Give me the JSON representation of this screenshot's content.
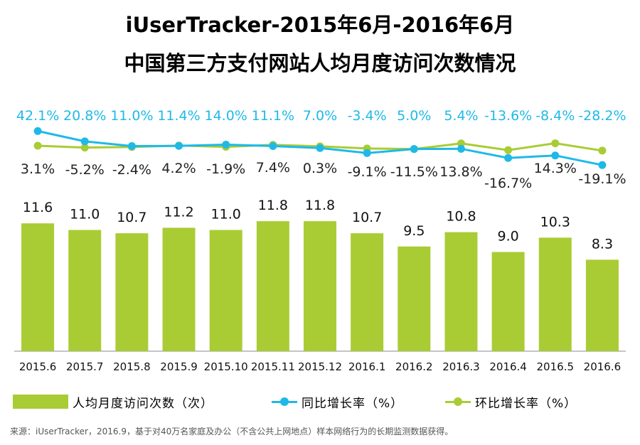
{
  "title_line1": "iUserTracker-2015年6月-2016年6月",
  "title_line2": "中国第三方支付网站人均月度访问次数情况",
  "chart_data": {
    "type": "bar",
    "categories": [
      "2015.6",
      "2015.7",
      "2015.8",
      "2015.9",
      "2015.10",
      "2015.11",
      "2015.12",
      "2016.1",
      "2016.2",
      "2016.3",
      "2016.4",
      "2016.5",
      "2016.6"
    ],
    "series": [
      {
        "name": "人均月度访问次数（次）",
        "kind": "bar",
        "color": "#a9cc34",
        "values": [
          11.6,
          11.0,
          10.7,
          11.2,
          11.0,
          11.8,
          11.8,
          10.7,
          9.5,
          10.8,
          9.0,
          10.3,
          8.3
        ],
        "labels": [
          "11.6",
          "11.0",
          "10.7",
          "11.2",
          "11.0",
          "11.8",
          "11.8",
          "10.7",
          "9.5",
          "10.8",
          "9.0",
          "10.3",
          "8.3"
        ]
      },
      {
        "name": "同比增长率（%）",
        "kind": "line",
        "color": "#1fb9e8",
        "values": [
          42.1,
          20.8,
          11.0,
          11.4,
          14.0,
          11.1,
          7.0,
          -3.4,
          5.0,
          5.4,
          -13.6,
          -8.4,
          -28.2
        ],
        "labels": [
          "42.1%",
          "20.8%",
          "11.0%",
          "11.4%",
          "14.0%",
          "11.1%",
          "7.0%",
          "-3.4%",
          "5.0%",
          "5.4%",
          "-13.6%",
          "-8.4%",
          "-28.2%"
        ]
      },
      {
        "name": "环比增长率（%）",
        "kind": "line",
        "color": "#a9cc34",
        "values": [
          3.1,
          -5.2,
          -2.4,
          4.2,
          -1.9,
          7.4,
          0.3,
          -9.1,
          -11.5,
          13.8,
          -16.7,
          14.3,
          -19.1
        ],
        "labels": [
          "3.1%",
          "-5.2%",
          "-2.4%",
          "4.2%",
          "-1.9%",
          "7.4%",
          "0.3%",
          "-9.1%",
          "-11.5%",
          "13.8%",
          "-16.7%",
          "14.3%",
          "-19.1%"
        ]
      }
    ],
    "legend_position": "bottom"
  },
  "legend": {
    "bar": "人均月度访问次数（次）",
    "yoy": "同比增长率（%）",
    "mom": "环比增长率（%）"
  },
  "source": "来源：iUserTracker，2016.9，基于对40万名家庭及办公（不含公共上网地点）样本网络行为的长期监测数据获得。"
}
